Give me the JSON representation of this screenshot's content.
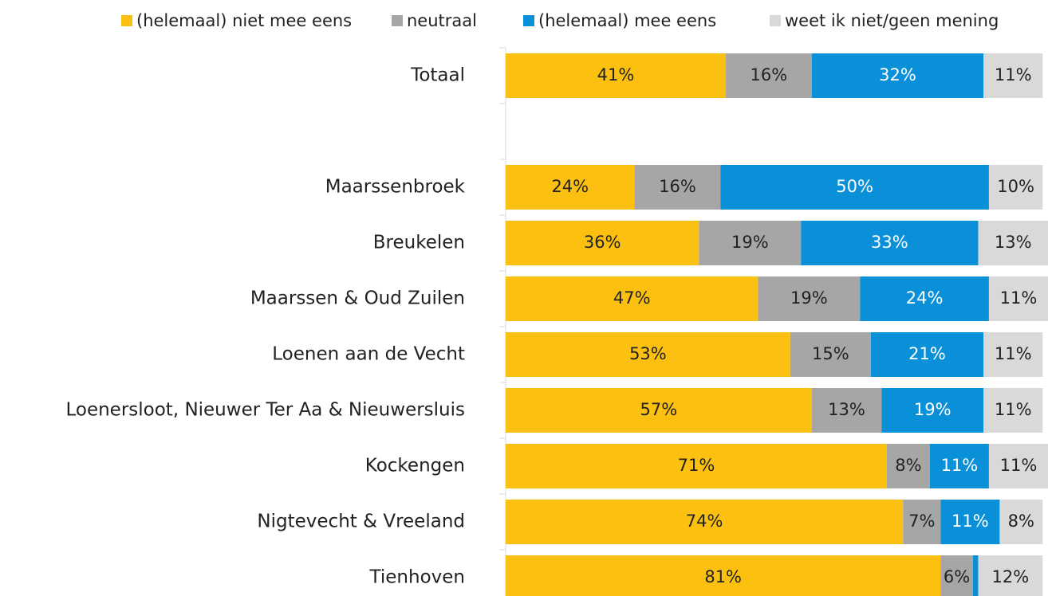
{
  "chart_data": {
    "type": "stacked-barh",
    "categories": [
      "Totaal",
      null,
      "Maarssenbroek",
      "Breukelen",
      "Maarssen & Oud Zuilen",
      "Loenen aan de Vecht",
      "Loenersloot, Nieuwer Ter Aa & Nieuwersluis",
      "Kockengen",
      "Nigtevecht & Vreeland",
      "Tienhoven"
    ],
    "series": [
      {
        "name": "(helemaal) niet mee eens",
        "color": "#fcc010",
        "values": [
          41,
          null,
          24,
          36,
          47,
          53,
          57,
          71,
          74,
          81
        ],
        "value_labels": [
          "41%",
          null,
          "24%",
          "36%",
          "47%",
          "53%",
          "57%",
          "71%",
          "74%",
          "81%"
        ]
      },
      {
        "name": "neutraal",
        "color": "#a6a6a6",
        "values": [
          16,
          null,
          16,
          19,
          19,
          15,
          13,
          8,
          7,
          6
        ],
        "value_labels": [
          "16%",
          null,
          "16%",
          "19%",
          "19%",
          "15%",
          "13%",
          "8%",
          "7%",
          "6%"
        ]
      },
      {
        "name": "(helemaal) mee eens",
        "color": "#0a90d8",
        "values": [
          32,
          null,
          50,
          33,
          24,
          21,
          19,
          11,
          11,
          1
        ],
        "value_labels": [
          "32%",
          null,
          "50%",
          "33%",
          "24%",
          "21%",
          "19%",
          "11%",
          "11%",
          null
        ]
      },
      {
        "name": "weet ik niet/geen mening",
        "color": "#d9d9d9",
        "values": [
          11,
          null,
          10,
          13,
          11,
          11,
          11,
          11,
          8,
          12
        ],
        "value_labels": [
          "11%",
          null,
          "10%",
          "13%",
          "11%",
          "11%",
          "11%",
          "11%",
          "8%",
          "12%"
        ]
      }
    ],
    "legend": "top"
  }
}
